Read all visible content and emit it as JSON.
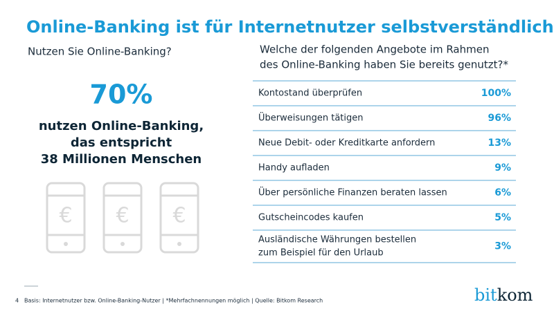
{
  "header": {
    "title": "Online-Banking ist für Internetnutzer selbstverständlich"
  },
  "left": {
    "question": "Nutzen Sie Online-Banking?",
    "big_value": "70%",
    "text_lines": [
      "nutzen Online-Banking,",
      "das entspricht",
      "38 Millionen Menschen"
    ],
    "icon_symbol": "€"
  },
  "right": {
    "question_lines": [
      "Welche der folgenden Angebote im Rahmen",
      "des Online-Banking haben Sie bereits genutzt?*"
    ]
  },
  "table": {
    "rows": [
      [
        [
          "Kontostand überprüfen"
        ],
        "100%"
      ],
      [
        [
          "Überweisungen tätigen"
        ],
        "96%"
      ],
      [
        [
          "Neue Debit- oder Kreditkarte anfordern"
        ],
        "13%"
      ],
      [
        [
          "Handy aufladen"
        ],
        "9%"
      ],
      [
        [
          "Über persönliche Finanzen beraten lassen"
        ],
        "6%"
      ],
      [
        [
          "Gutscheincodes kaufen"
        ],
        "5%"
      ],
      [
        [
          "Ausländische Währungen bestellen",
          "zum Beispiel für den Urlaub"
        ],
        "3%"
      ]
    ]
  },
  "footer": {
    "page": "4",
    "note": "Basis: Internetnutzer bzw. Online-Banking-Nutzer | *Mehrfachnennungen möglich | Quelle: Bitkom Research",
    "logo": [
      "bit",
      "kom"
    ]
  }
}
